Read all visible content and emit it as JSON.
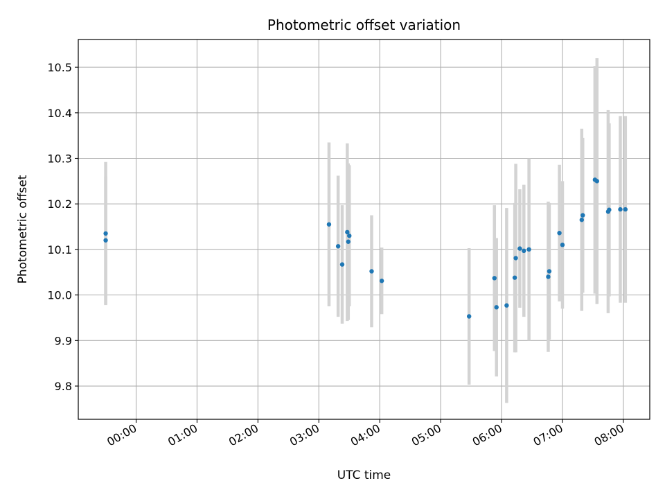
{
  "chart_data": {
    "type": "scatter",
    "title": "Photometric offset variation",
    "xlabel": "UTC time",
    "ylabel": "Photometric offset",
    "x_ticks": [
      "00:00",
      "01:00",
      "02:00",
      "03:00",
      "04:00",
      "05:00",
      "06:00",
      "07:00",
      "08:00"
    ],
    "y_ticks": [
      "9.8",
      "9.9",
      "10.0",
      "10.1",
      "10.2",
      "10.3",
      "10.4",
      "10.5"
    ],
    "xlim": [
      "23:03",
      "08:26"
    ],
    "ylim": [
      9.727,
      10.561
    ],
    "grid": true,
    "legend": "none",
    "colors": {
      "point": "#1f77b4",
      "errorbar": "#d3d3d3",
      "grid": "#b0b0b0"
    },
    "points": [
      {
        "x": "23:30",
        "y": 10.135,
        "err": 0.157
      },
      {
        "x": "23:30",
        "y": 10.12,
        "err": 0.14
      },
      {
        "x": "03:10",
        "y": 10.155,
        "err": 0.18
      },
      {
        "x": "03:19",
        "y": 10.107,
        "err": 0.155
      },
      {
        "x": "03:23",
        "y": 10.067,
        "err": 0.13
      },
      {
        "x": "03:28",
        "y": 10.138,
        "err": 0.195
      },
      {
        "x": "03:29",
        "y": 10.117,
        "err": 0.172
      },
      {
        "x": "03:30",
        "y": 10.13,
        "err": 0.155
      },
      {
        "x": "03:52",
        "y": 10.052,
        "err": 0.123
      },
      {
        "x": "04:02",
        "y": 10.031,
        "err": 0.073
      },
      {
        "x": "05:28",
        "y": 9.953,
        "err": 0.15
      },
      {
        "x": "05:53",
        "y": 10.037,
        "err": 0.16
      },
      {
        "x": "05:55",
        "y": 9.973,
        "err": 0.152
      },
      {
        "x": "06:05",
        "y": 9.977,
        "err": 0.214
      },
      {
        "x": "06:13",
        "y": 10.038,
        "err": 0.164
      },
      {
        "x": "06:14",
        "y": 10.081,
        "err": 0.207
      },
      {
        "x": "06:18",
        "y": 10.102,
        "err": 0.13
      },
      {
        "x": "06:22",
        "y": 10.097,
        "err": 0.145
      },
      {
        "x": "06:27",
        "y": 10.1,
        "err": 0.2
      },
      {
        "x": "06:46",
        "y": 10.04,
        "err": 0.165
      },
      {
        "x": "06:47",
        "y": 10.052,
        "err": 0.15
      },
      {
        "x": "06:57",
        "y": 10.136,
        "err": 0.15
      },
      {
        "x": "07:00",
        "y": 10.11,
        "err": 0.14
      },
      {
        "x": "07:19",
        "y": 10.165,
        "err": 0.2
      },
      {
        "x": "07:20",
        "y": 10.175,
        "err": 0.17
      },
      {
        "x": "07:32",
        "y": 10.253,
        "err": 0.25
      },
      {
        "x": "07:34",
        "y": 10.25,
        "err": 0.27
      },
      {
        "x": "07:45",
        "y": 10.183,
        "err": 0.223
      },
      {
        "x": "07:46",
        "y": 10.187,
        "err": 0.19
      },
      {
        "x": "07:57",
        "y": 10.188,
        "err": 0.205
      },
      {
        "x": "08:02",
        "y": 10.188,
        "err": 0.205
      }
    ]
  }
}
